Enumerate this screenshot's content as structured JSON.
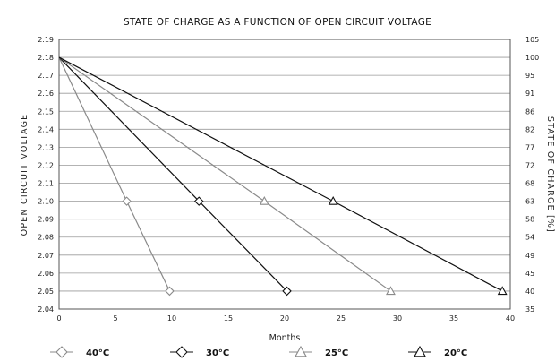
{
  "chart_data": {
    "type": "line",
    "title": "STATE OF CHARGE AS A FUNCTION OF OPEN CIRCUIT VOLTAGE",
    "xlabel": "Months",
    "ylabel": "OPEN CIRCUIT VOLTAGE",
    "y2label": "STATE OF CHARGE [%]",
    "xlim": [
      0,
      40
    ],
    "ylim": [
      2.04,
      2.19
    ],
    "x_ticks": [
      "0",
      "5",
      "10",
      "15",
      "20",
      "25",
      "30",
      "35",
      "40"
    ],
    "y_ticks": [
      "2.04",
      "2.05",
      "2.06",
      "2.07",
      "2.08",
      "2.09",
      "2.10",
      "2.11",
      "2.12",
      "2.13",
      "2.14",
      "2.15",
      "2.16",
      "2.17",
      "2.18",
      "2.19"
    ],
    "y2_ticks": [
      "35",
      "40",
      "45",
      "49",
      "54",
      "58",
      "63",
      "68",
      "72",
      "77",
      "82",
      "86",
      "91",
      "95",
      "100",
      "105"
    ],
    "grid": true,
    "legend_position": "bottom",
    "series": [
      {
        "name": "40°C",
        "color": "#8a8a8a",
        "marker": "diamond",
        "x": [
          0,
          6,
          9.8
        ],
        "y": [
          2.18,
          2.1,
          2.05
        ]
      },
      {
        "name": "30°C",
        "color": "#111111",
        "marker": "diamond",
        "x": [
          0,
          12.4,
          20.2
        ],
        "y": [
          2.18,
          2.1,
          2.05
        ]
      },
      {
        "name": "25°C",
        "color": "#8a8a8a",
        "marker": "triangle",
        "x": [
          0,
          18.2,
          29.4
        ],
        "y": [
          2.18,
          2.1,
          2.05
        ]
      },
      {
        "name": "20°C",
        "color": "#111111",
        "marker": "triangle",
        "x": [
          0,
          24.3,
          39.3
        ],
        "y": [
          2.18,
          2.1,
          2.05
        ]
      }
    ]
  }
}
